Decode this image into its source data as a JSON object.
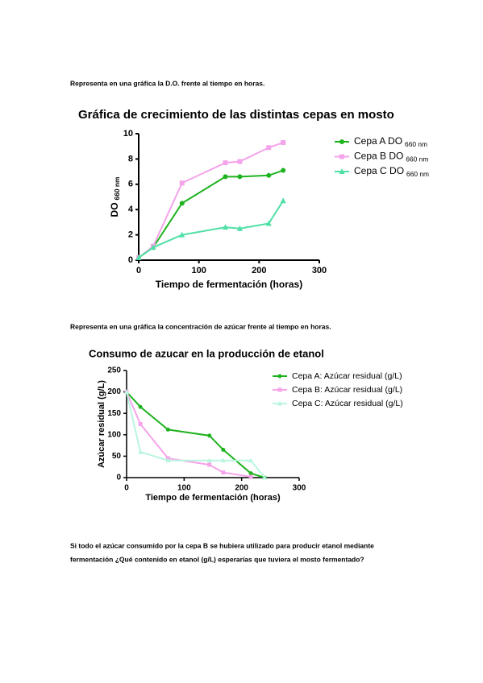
{
  "paragraphs": [
    "Representa en una gráfica la D.O. frente al tiempo en horas.",
    "Representa en una gráfica la concentración de azúcar frente al tiempo en horas.",
    "Si todo el azúcar consumido por la cepa B se hubiera utilizado para producir etanol mediante",
    "fermentación ¿Qué contenido en etanol (g/L) esperarías que tuviera el mosto fermentado?"
  ],
  "chart_data": [
    {
      "type": "line",
      "title": "Gráfica de crecimiento de las distintas cepas en mosto",
      "xlabel": "Tiempo de fermentación (horas)",
      "ylabel": "DO",
      "subscript": "660 nm",
      "x": [
        0,
        24,
        72,
        144,
        168,
        216,
        240
      ],
      "xlim": [
        0,
        300
      ],
      "xticks": [
        0,
        100,
        200,
        300
      ],
      "ylim": [
        0,
        10
      ],
      "yticks": [
        0,
        2,
        4,
        6,
        8,
        10
      ],
      "series": [
        {
          "name": "Cepa A DO",
          "color": "#1fb31f",
          "values": [
            0.2,
            1.0,
            4.5,
            6.6,
            6.6,
            6.7,
            7.1
          ]
        },
        {
          "name": "Cepa B DO",
          "color": "#f5a3ea",
          "values": [
            0.2,
            1.1,
            6.1,
            7.7,
            7.8,
            8.9,
            9.3
          ]
        },
        {
          "name": "Cepa C DO",
          "color": "#4fe0a6",
          "values": [
            0.2,
            1.0,
            2.0,
            2.6,
            2.5,
            2.9,
            4.7
          ]
        }
      ]
    },
    {
      "type": "line",
      "title": "Consumo de azucar en la producción de etanol",
      "xlabel": "Tiempo de fermentación (horas)",
      "ylabel": "Azúcar residual (g/L)",
      "x": [
        0,
        24,
        72,
        144,
        168,
        216,
        240
      ],
      "xlim": [
        0,
        300
      ],
      "xticks": [
        0,
        100,
        200,
        300
      ],
      "ylim": [
        0,
        250
      ],
      "yticks": [
        0,
        50,
        100,
        150,
        200,
        250
      ],
      "series": [
        {
          "name": "Cepa A: Azúcar residual (g/L)",
          "color": "#1fb31f",
          "values": [
            200,
            165,
            112,
            98,
            65,
            10,
            0
          ]
        },
        {
          "name": "Cepa B: Azúcar residual (g/L)",
          "color": "#f5a3ea",
          "values": [
            200,
            125,
            45,
            30,
            12,
            2,
            null
          ]
        },
        {
          "name": "Cepa C: Azúcar residual (g/L)",
          "color": "#b9f5df",
          "values": [
            200,
            60,
            40,
            40,
            40,
            40,
            0
          ]
        }
      ]
    }
  ]
}
